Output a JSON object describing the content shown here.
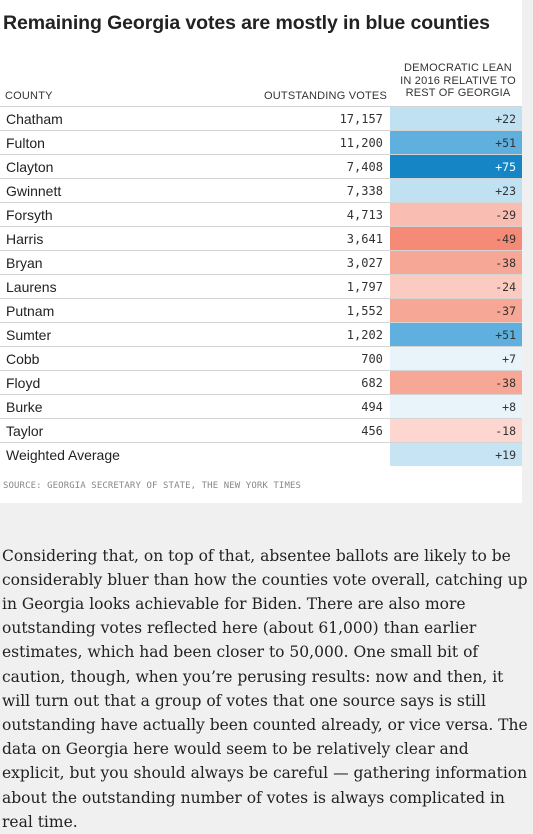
{
  "title": "Remaining Georgia votes are mostly in blue counties",
  "headers": {
    "county": "COUNTY",
    "votes": "OUTSTANDING VOTES",
    "lean_line1": "DEMOCRATIC LEAN",
    "lean_line2": "IN 2016 RELATIVE TO",
    "lean_line3": "REST OF GEORGIA"
  },
  "rows": [
    {
      "county": "Chatham",
      "votes": "17,157",
      "lean": "+22",
      "color": "#bfe1f2",
      "text_color": "#333333"
    },
    {
      "county": "Fulton",
      "votes": "11,200",
      "lean": "+51",
      "color": "#5fb0de",
      "text_color": "#333333"
    },
    {
      "county": "Clayton",
      "votes": "7,408",
      "lean": "+75",
      "color": "#1685c6",
      "text_color": "#ffffff"
    },
    {
      "county": "Gwinnett",
      "votes": "7,338",
      "lean": "+23",
      "color": "#bfe1f2",
      "text_color": "#333333"
    },
    {
      "county": "Forsyth",
      "votes": "4,713",
      "lean": "-29",
      "color": "#f9bdb1",
      "text_color": "#333333"
    },
    {
      "county": "Harris",
      "votes": "3,641",
      "lean": "-49",
      "color": "#f58b77",
      "text_color": "#333333"
    },
    {
      "county": "Bryan",
      "votes": "3,027",
      "lean": "-38",
      "color": "#f7a795",
      "text_color": "#333333"
    },
    {
      "county": "Laurens",
      "votes": "1,797",
      "lean": "-24",
      "color": "#fbcbc1",
      "text_color": "#333333"
    },
    {
      "county": "Putnam",
      "votes": "1,552",
      "lean": "-37",
      "color": "#f7a795",
      "text_color": "#333333"
    },
    {
      "county": "Sumter",
      "votes": "1,202",
      "lean": "+51",
      "color": "#5fb0de",
      "text_color": "#333333"
    },
    {
      "county": "Cobb",
      "votes": "700",
      "lean": "+7",
      "color": "#e8f4fa",
      "text_color": "#333333"
    },
    {
      "county": "Floyd",
      "votes": "682",
      "lean": "-38",
      "color": "#f7a795",
      "text_color": "#333333"
    },
    {
      "county": "Burke",
      "votes": "494",
      "lean": "+8",
      "color": "#e8f4fa",
      "text_color": "#333333"
    },
    {
      "county": "Taylor",
      "votes": "456",
      "lean": "-18",
      "color": "#fcd6cf",
      "text_color": "#333333"
    },
    {
      "county": "Weighted Average",
      "votes": "",
      "lean": "+19",
      "color": "#c6e4f3",
      "text_color": "#333333"
    }
  ],
  "source": "SOURCE: GEORGIA SECRETARY OF STATE, THE NEW YORK TIMES",
  "article": "Considering that, on top of that, absentee ballots are likely to be considerably bluer than how the counties vote overall, catching up in Georgia looks achievable for Biden. There are also more outstanding votes reflected here (about 61,000) than earlier estimates, which had been closer to 50,000. One small bit of caution, though, when you’re perusing results: now and then, it will turn out that a group of votes that one source says is still outstanding have actually been counted already, or vice versa. The data on Georgia here would seem to be relatively clear and explicit, but you should always be careful — gathering information about the outstanding number of votes is always complicated in real time."
}
